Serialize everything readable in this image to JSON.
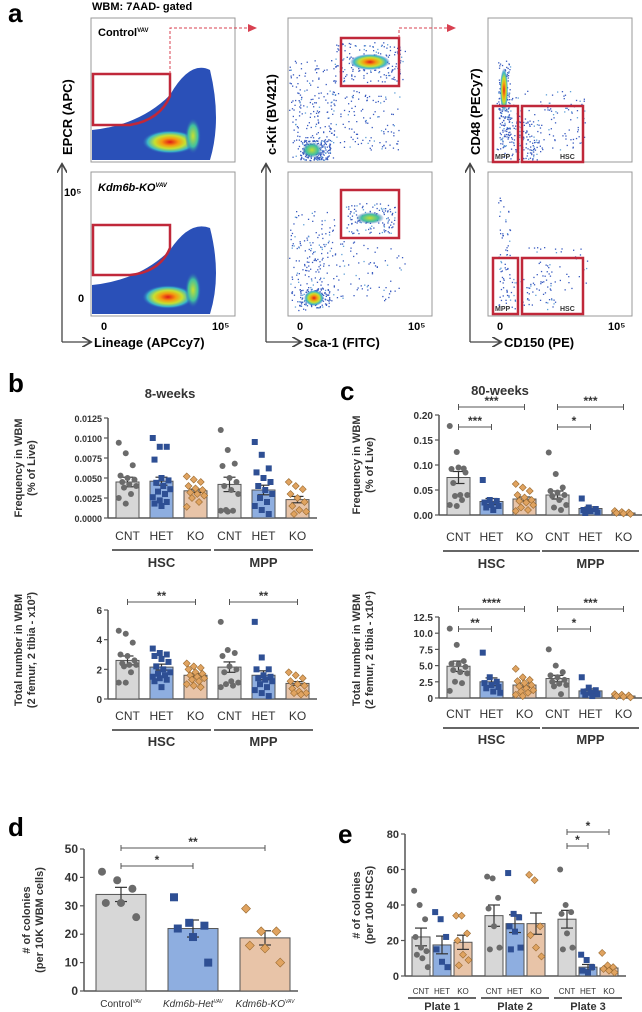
{
  "colors": {
    "cnt_fill": "#d7d7d7",
    "het_fill": "#8eaee0",
    "ko_fill": "#e8c4a8",
    "cnt_dot": "#6b6b6b",
    "het_dot": "#2e4f94",
    "ko_dot": "#e0a360",
    "gate": "#c0283a",
    "axis": "#555555"
  },
  "panel_a": {
    "letter": "a",
    "header": "WBM: 7AAD- gated",
    "row_labels": [
      "Control",
      "Kdm6b-KO"
    ],
    "row_label_sup": "VAV",
    "plots": [
      {
        "ylabel": "EPCR (APC)",
        "xlabel": "Lineage (APCcy7)",
        "x_ticks": [
          "0",
          "10⁵"
        ],
        "y_ticks": [
          "0",
          "10⁵"
        ]
      },
      {
        "ylabel": "c-Kit (BV421)",
        "xlabel": "Sca-1 (FITC)",
        "x_ticks": [
          "0",
          "10⁵"
        ]
      },
      {
        "ylabel": "CD48 (PECy7)",
        "xlabel": "CD150 (PE)",
        "x_ticks": [
          "0",
          "10⁵"
        ],
        "gates": [
          "MPP",
          "HSC"
        ]
      }
    ]
  },
  "chart_data": [
    {
      "id": "b-top",
      "panel": "b",
      "type": "bar",
      "title": "8-weeks",
      "ylabel": "Frequency in WBM (% of Live)",
      "ylim": [
        0,
        0.0125
      ],
      "yticks": [
        "0.0000",
        "0.0025",
        "0.0050",
        "0.0075",
        "0.0100",
        "0.0125"
      ],
      "categories": [
        "CNT",
        "HET",
        "KO",
        "CNT",
        "HET",
        "KO"
      ],
      "groups": [
        "HSC",
        "MPP"
      ],
      "values": [
        0.0045,
        0.0046,
        0.0034,
        0.0042,
        0.0035,
        0.0023
      ],
      "errors": [
        0.0006,
        0.0005,
        0.0002,
        0.0009,
        0.0006,
        0.0004
      ],
      "points": [
        [
          0.0094,
          0.0081,
          0.0066,
          0.0053,
          0.005,
          0.0048,
          0.0045,
          0.0042,
          0.004,
          0.0038,
          0.003,
          0.0025,
          0.0018
        ],
        [
          0.01,
          0.0089,
          0.0089,
          0.0073,
          0.005,
          0.0047,
          0.0044,
          0.004,
          0.0036,
          0.0033,
          0.003,
          0.0026,
          0.0022,
          0.002,
          0.0018,
          0.0015
        ],
        [
          0.0052,
          0.0048,
          0.0045,
          0.004,
          0.0037,
          0.0035,
          0.0032,
          0.003,
          0.0028,
          0.0025,
          0.002,
          0.0014
        ],
        [
          0.011,
          0.0085,
          0.0068,
          0.0065,
          0.005,
          0.0045,
          0.004,
          0.0035,
          0.003,
          0.001,
          0.0009,
          0.0009,
          0.0008
        ],
        [
          0.0095,
          0.0079,
          0.0062,
          0.0057,
          0.005,
          0.0045,
          0.004,
          0.0035,
          0.003,
          0.0025,
          0.002,
          0.0015,
          0.001,
          0.0005
        ],
        [
          0.0045,
          0.004,
          0.0036,
          0.003,
          0.0025,
          0.002,
          0.0015,
          0.001,
          0.0008,
          0.0005
        ]
      ],
      "significance": []
    },
    {
      "id": "b-bottom",
      "panel": "b",
      "type": "bar",
      "title": "",
      "ylabel": "Total number in WBM (2 femur, 2 tibia - x10³)",
      "ylim": [
        0,
        6
      ],
      "yticks": [
        "0",
        "2",
        "4",
        "6"
      ],
      "categories": [
        "CNT",
        "HET",
        "KO",
        "CNT",
        "HET",
        "KO"
      ],
      "groups": [
        "HSC",
        "MPP"
      ],
      "values": [
        2.6,
        2.15,
        1.6,
        2.15,
        1.6,
        1.05
      ],
      "errors": [
        0.3,
        0.2,
        0.1,
        0.35,
        0.3,
        0.12
      ],
      "points": [
        [
          4.6,
          4.4,
          3.8,
          3.0,
          2.9,
          2.6,
          2.4,
          2.3,
          2.3,
          2.2,
          1.8,
          1.1,
          1.1
        ],
        [
          3.4,
          3.1,
          3.0,
          2.9,
          2.7,
          2.5,
          2.2,
          2.0,
          1.8,
          1.7,
          1.6,
          1.5,
          1.4,
          1.3,
          1.2,
          0.8
        ],
        [
          2.4,
          2.2,
          2.1,
          2.0,
          1.8,
          1.7,
          1.6,
          1.5,
          1.4,
          1.3,
          1.2,
          1.0,
          0.9,
          0.8
        ],
        [
          5.2,
          3.3,
          3.1,
          2.9,
          2.2,
          2.0,
          1.8,
          1.2,
          1.1,
          1.0,
          0.9,
          0.8
        ],
        [
          5.2,
          2.8,
          2.0,
          2.0,
          1.6,
          1.5,
          1.4,
          1.3,
          1.2,
          1.0,
          0.8,
          0.6,
          0.4,
          0.2
        ],
        [
          1.8,
          1.6,
          1.4,
          1.2,
          1.0,
          0.9,
          0.7,
          0.5,
          0.4,
          0.4,
          0.3
        ]
      ],
      "significance": [
        {
          "from": 0,
          "to": 2,
          "label": "**",
          "level": 0
        },
        {
          "from": 3,
          "to": 5,
          "label": "**",
          "level": 0
        }
      ]
    },
    {
      "id": "c-top",
      "panel": "c",
      "type": "bar",
      "title": "80-weeks",
      "ylabel": "Frequency in WBM (% of Live)",
      "ylim": [
        0,
        0.2
      ],
      "yticks": [
        "0.00",
        "0.05",
        "0.10",
        "0.15",
        "0.20"
      ],
      "categories": [
        "CNT",
        "HET",
        "KO",
        "CNT",
        "HET",
        "KO"
      ],
      "groups": [
        "HSC",
        "MPP"
      ],
      "values": [
        0.075,
        0.027,
        0.032,
        0.04,
        0.013,
        0.004
      ],
      "errors": [
        0.012,
        0.006,
        0.004,
        0.008,
        0.003,
        0.001
      ],
      "points": [
        [
          0.178,
          0.126,
          0.093,
          0.092,
          0.095,
          0.085,
          0.064,
          0.04,
          0.04,
          0.038,
          0.03,
          0.02,
          0.018
        ],
        [
          0.07,
          0.03,
          0.028,
          0.025,
          0.02,
          0.018,
          0.015,
          0.01
        ],
        [
          0.062,
          0.055,
          0.048,
          0.04,
          0.035,
          0.03,
          0.028,
          0.025,
          0.02,
          0.015,
          0.01,
          0.008
        ],
        [
          0.125,
          0.082,
          0.055,
          0.048,
          0.045,
          0.04,
          0.038,
          0.03,
          0.02,
          0.015,
          0.01
        ],
        [
          0.033,
          0.015,
          0.012,
          0.01,
          0.008,
          0.005,
          0.004
        ],
        [
          0.008,
          0.006,
          0.005,
          0.004,
          0.003,
          0.002
        ]
      ],
      "significance": [
        {
          "from": 0,
          "to": 2,
          "label": "***",
          "level": 1
        },
        {
          "from": 0,
          "to": 1,
          "label": "***",
          "level": 0
        },
        {
          "from": 3,
          "to": 5,
          "label": "***",
          "level": 1
        },
        {
          "from": 3,
          "to": 4,
          "label": "*",
          "level": 0
        }
      ]
    },
    {
      "id": "c-bottom",
      "panel": "c",
      "type": "bar",
      "title": "",
      "ylabel": "Total number in WBM (2 femur, 2 tibia - x10⁴)",
      "ylim": [
        0,
        12.5
      ],
      "yticks": [
        "0",
        "2.5",
        "5.0",
        "7.5",
        "10.0",
        "12.5"
      ],
      "categories": [
        "CNT",
        "HET",
        "KO",
        "CNT",
        "HET",
        "KO"
      ],
      "groups": [
        "HSC",
        "MPP"
      ],
      "values": [
        4.9,
        2.5,
        2.0,
        3.0,
        1.1,
        0.3
      ],
      "errors": [
        0.8,
        0.6,
        0.3,
        0.5,
        0.3,
        0.05
      ],
      "points": [
        [
          10.7,
          8.2,
          5.7,
          5.3,
          5.2,
          4.8,
          4.3,
          4.0,
          3.8,
          2.5,
          2.3,
          1.1
        ],
        [
          7.0,
          3.2,
          2.5,
          2.3,
          2.0,
          1.7,
          1.5,
          1.0,
          0.8
        ],
        [
          4.5,
          3.2,
          2.8,
          2.6,
          2.3,
          2.0,
          1.8,
          1.5,
          1.2,
          1.0,
          0.8,
          0.5,
          0.3
        ],
        [
          7.5,
          5.0,
          4.0,
          3.5,
          3.2,
          2.8,
          2.5,
          2.2,
          2.0,
          1.8,
          0.6
        ],
        [
          3.2,
          1.6,
          1.2,
          1.0,
          0.8,
          0.6,
          0.5,
          0.3
        ],
        [
          0.6,
          0.5,
          0.4,
          0.3,
          0.2,
          0.1
        ]
      ],
      "significance": [
        {
          "from": 0,
          "to": 2,
          "label": "****",
          "level": 1
        },
        {
          "from": 0,
          "to": 1,
          "label": "**",
          "level": 0
        },
        {
          "from": 3,
          "to": 5,
          "label": "***",
          "level": 1
        },
        {
          "from": 3,
          "to": 4,
          "label": "*",
          "level": 0
        }
      ]
    },
    {
      "id": "d",
      "panel": "d",
      "type": "bar",
      "title": "",
      "ylabel": "# of colonies (per 10K WBM cells)",
      "ylim": [
        0,
        50
      ],
      "yticks": [
        "0",
        "10",
        "20",
        "30",
        "40",
        "50"
      ],
      "categories": [
        "Control",
        "Kdm6b-Het",
        "Kdm6b-KO"
      ],
      "category_sup": "VAV",
      "values": [
        34,
        22,
        18.7
      ],
      "errors": [
        2.5,
        3,
        2.5
      ],
      "points": [
        [
          42,
          39,
          36,
          31,
          31,
          26
        ],
        [
          33,
          24,
          23,
          22,
          19,
          10
        ],
        [
          29,
          21,
          21,
          16,
          15,
          10
        ]
      ],
      "significance": [
        {
          "from": 0,
          "to": 1,
          "label": "*",
          "level": 0
        },
        {
          "from": 0,
          "to": 2,
          "label": "**",
          "level": 1
        }
      ]
    },
    {
      "id": "e",
      "panel": "e",
      "type": "bar",
      "title": "",
      "ylabel": "# of colonies (per 100 HSCs)",
      "ylim": [
        0,
        80
      ],
      "yticks": [
        "0",
        "20",
        "40",
        "60",
        "80"
      ],
      "categories": [
        "CNT",
        "HET",
        "KO",
        "CNT",
        "HET",
        "KO",
        "CNT",
        "HET",
        "KO"
      ],
      "groups": [
        "Plate 1",
        "Plate 2",
        "Plate 3"
      ],
      "values": [
        22,
        17.5,
        19,
        34,
        29.5,
        29.5,
        32,
        5,
        4.5
      ],
      "errors": [
        5,
        5,
        4,
        6,
        5,
        6,
        5,
        1.5,
        1
      ],
      "points": [
        [
          48,
          40,
          32,
          22,
          16,
          14,
          12,
          10,
          5
        ],
        [
          36,
          32,
          22,
          15,
          8,
          5
        ],
        [
          34,
          34,
          24,
          20,
          12,
          9,
          6
        ],
        [
          56,
          55,
          44,
          38,
          28,
          16,
          15
        ],
        [
          58,
          35,
          33,
          28,
          25,
          16,
          15
        ],
        [
          57,
          54,
          28,
          23,
          16,
          11
        ],
        [
          60,
          40,
          36,
          35,
          24,
          16,
          15
        ],
        [
          12,
          9,
          5,
          3,
          2
        ],
        [
          13,
          6,
          5,
          4,
          3,
          2
        ]
      ],
      "significance": [
        {
          "from": 6,
          "to": 7,
          "label": "*",
          "level": 0
        },
        {
          "from": 6,
          "to": 8,
          "label": "*",
          "level": 1
        }
      ]
    }
  ],
  "panel_labels": {
    "b": "b",
    "c": "c",
    "d": "d",
    "e": "e"
  }
}
